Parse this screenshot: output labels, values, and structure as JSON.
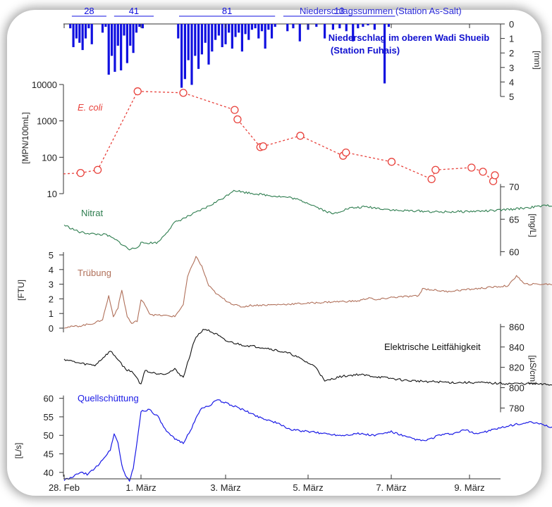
{
  "chart_data": [
    {
      "panel": "precipitation",
      "type": "bar",
      "title": "Niederschlag im oberen Wadi Shueib",
      "subtitle": "(Station Fuhais)",
      "top_legend": "Niederschlagssummen (Station As-Salt)",
      "yunit": "[mm]",
      "yticks": [
        0,
        1,
        2,
        3,
        4,
        5
      ],
      "ylim": [
        0,
        5
      ],
      "inverted": true,
      "color": "#1010e0",
      "sum_labels": [
        {
          "label": "28",
          "from": -0.9,
          "to": -0.45
        },
        {
          "label": "41",
          "from": -0.35,
          "to": 0.15
        },
        {
          "label": "81",
          "from": 0.45,
          "to": 1.6
        },
        {
          "label": "13",
          "from": 1.7,
          "to": 3.05
        }
      ],
      "x": [
        -0.92,
        -0.88,
        -0.84,
        -0.8,
        -0.76,
        -0.72,
        -0.68,
        -0.64,
        -0.5,
        -0.46,
        -0.42,
        -0.38,
        -0.34,
        -0.3,
        -0.26,
        -0.22,
        -0.18,
        -0.14,
        -0.1,
        -0.06,
        -0.02,
        0.02,
        0.44,
        0.48,
        0.52,
        0.56,
        0.6,
        0.64,
        0.68,
        0.72,
        0.76,
        0.8,
        0.84,
        0.88,
        0.92,
        0.96,
        1.0,
        1.04,
        1.08,
        1.12,
        1.16,
        1.2,
        1.24,
        1.28,
        1.32,
        1.36,
        1.4,
        1.44,
        1.48,
        1.52,
        1.56,
        1.6,
        1.75,
        1.82,
        1.9,
        2.0,
        2.1,
        2.2,
        2.3,
        2.38,
        2.46,
        2.54,
        2.6,
        2.66,
        2.72,
        2.8,
        2.92,
        2.97
      ],
      "values": [
        0.3,
        1.6,
        1.0,
        1.3,
        1.8,
        1.0,
        0.3,
        1.4,
        0.6,
        0.2,
        3.5,
        2.2,
        3.3,
        1.5,
        3.2,
        0.8,
        2.7,
        1.5,
        2.0,
        0.6,
        0.2,
        0.3,
        1.0,
        4.4,
        3.8,
        2.5,
        4.2,
        2.2,
        3.1,
        2.1,
        1.3,
        2.8,
        1.9,
        1.1,
        0.8,
        1.6,
        1.4,
        0.6,
        1.7,
        0.9,
        0.6,
        1.9,
        0.7,
        1.1,
        0.4,
        0.3,
        1.0,
        0.5,
        1.7,
        0.4,
        1.0,
        0.2,
        0.5,
        0.3,
        1.2,
        0.4,
        0.2,
        1.0,
        0.4,
        0.3,
        0.5,
        1.2,
        0.3,
        0.2,
        0.1,
        0.4,
        4.1,
        0.2
      ]
    },
    {
      "panel": "ecoli",
      "type": "line",
      "series_name": "E. coli",
      "ylabel": "[MPN/100mL]",
      "yscale": "log",
      "yticks": [
        10,
        100,
        1000,
        10000
      ],
      "ylim": [
        10,
        10000
      ],
      "color": "#e8423c",
      "x": [
        -1.6,
        -1.3,
        -1.0,
        -0.3,
        0.5,
        1.4,
        1.45,
        1.85,
        1.9,
        2.55,
        3.3,
        3.35,
        4.15,
        4.85,
        4.92,
        5.55,
        5.75,
        5.93,
        5.96
      ],
      "values": [
        35,
        37,
        45,
        6500,
        5900,
        2000,
        1100,
        190,
        200,
        390,
        110,
        135,
        75,
        25,
        45,
        52,
        40,
        22,
        32
      ]
    },
    {
      "panel": "nitrat",
      "type": "line",
      "series_name": "Nitrat",
      "ylabel": "[mg/L]",
      "yticks": [
        60,
        65,
        70
      ],
      "ylim": [
        57,
        71
      ],
      "color": "#2e7d4f",
      "x": [
        -1.0,
        -0.8,
        -0.6,
        -0.45,
        -0.3,
        -0.15,
        -0.05,
        0.0,
        0.2,
        0.4,
        0.6,
        0.8,
        1.0,
        1.1,
        1.2,
        1.5,
        1.8,
        2.0,
        2.2,
        2.3,
        2.4,
        2.5,
        2.7,
        2.9,
        3.1,
        3.3,
        3.6,
        4.0,
        4.3,
        4.6,
        5.0,
        5.3,
        5.6,
        5.9,
        6.05
      ],
      "values": [
        64.1,
        63.0,
        62.7,
        62.6,
        61.6,
        60.3,
        60.7,
        61.3,
        61.4,
        64.5,
        65.7,
        67.0,
        68.5,
        69.5,
        69.2,
        68.7,
        68.3,
        67.5,
        66.3,
        65.8,
        66.3,
        66.7,
        66.9,
        66.6,
        66.3,
        66.3,
        66.1,
        66.2,
        66.3,
        66.6,
        67.1,
        67.3,
        67.6,
        67.8,
        67.9
      ]
    },
    {
      "panel": "truebung",
      "type": "line",
      "series_name": "Trübung",
      "ylabel": "[FTU]",
      "yticks": [
        0,
        1,
        2,
        3,
        4,
        5
      ],
      "ylim": [
        0,
        5
      ],
      "color": "#b0705a",
      "x": [
        -1.0,
        -0.8,
        -0.6,
        -0.5,
        -0.42,
        -0.36,
        -0.3,
        -0.25,
        -0.18,
        -0.12,
        -0.05,
        0.0,
        0.05,
        0.1,
        0.15,
        0.3,
        0.4,
        0.5,
        0.55,
        0.65,
        0.72,
        0.8,
        0.9,
        1.0,
        1.1,
        1.2,
        1.3,
        1.6,
        2.0,
        2.3,
        2.6,
        2.75,
        2.8,
        3.0,
        3.35,
        3.4,
        3.7,
        4.1,
        4.5,
        4.6,
        4.7,
        4.85,
        5.0,
        5.2,
        5.5,
        5.9,
        6.05
      ],
      "values": [
        0.05,
        0.15,
        0.35,
        0.6,
        2.2,
        0.8,
        1.4,
        2.6,
        0.8,
        0.3,
        0.5,
        1.9,
        1.6,
        1.0,
        0.9,
        0.85,
        0.8,
        1.6,
        3.5,
        4.9,
        4.2,
        2.9,
        2.3,
        1.9,
        1.6,
        1.45,
        1.55,
        1.6,
        1.7,
        1.8,
        1.85,
        2.1,
        1.9,
        2.1,
        2.2,
        2.7,
        2.5,
        2.7,
        2.9,
        3.6,
        3.0,
        3.0,
        3.0,
        3.0,
        2.95,
        2.8,
        2.85
      ]
    },
    {
      "panel": "leitfaehigkeit",
      "type": "line",
      "series_name": "Elektrische Leitfähigkeit",
      "ylabel": "[µS/cm]",
      "yticks": [
        780,
        800,
        820,
        840,
        860
      ],
      "ylim": [
        772,
        862
      ],
      "color": "#111111",
      "x": [
        -1.0,
        -0.8,
        -0.6,
        -0.4,
        -0.3,
        -0.2,
        -0.1,
        0.0,
        0.05,
        0.1,
        0.2,
        0.3,
        0.4,
        0.5,
        0.6,
        0.65,
        0.75,
        0.9,
        1.0,
        1.2,
        1.5,
        1.8,
        2.1,
        2.2,
        2.3,
        2.4,
        2.6,
        2.9,
        3.2,
        3.5,
        3.8,
        4.1,
        4.4,
        4.7,
        5.0,
        5.4,
        5.8,
        6.05
      ],
      "values": [
        828,
        824,
        822,
        836,
        828,
        818,
        815,
        803,
        818,
        815,
        814,
        814,
        818,
        810,
        838,
        850,
        858,
        852,
        846,
        842,
        839,
        833,
        820,
        806,
        809,
        811,
        813,
        810,
        807,
        806,
        805,
        805,
        804,
        804,
        803,
        803,
        804,
        805
      ]
    },
    {
      "panel": "quellschuettung",
      "type": "line",
      "series_name": "Quellschüttung",
      "ylabel": "[L/s]",
      "yticks": [
        40,
        45,
        50,
        55,
        60
      ],
      "ylim": [
        37.5,
        60.5
      ],
      "xticks": [
        "28. Feb",
        "1. März",
        "3. März",
        "5. März",
        "7. März",
        "9. März"
      ],
      "xtick_values": [
        -1,
        0,
        1,
        2,
        3,
        4
      ],
      "color": "#1a1ae6",
      "x": [
        -1.0,
        -0.9,
        -0.8,
        -0.7,
        -0.6,
        -0.5,
        -0.4,
        -0.35,
        -0.3,
        -0.25,
        -0.2,
        -0.15,
        -0.1,
        -0.05,
        0.0,
        0.1,
        0.2,
        0.3,
        0.4,
        0.5,
        0.6,
        0.7,
        0.8,
        0.9,
        1.0,
        1.2,
        1.4,
        1.6,
        1.8,
        2.0,
        2.2,
        2.4,
        2.6,
        2.8,
        3.0,
        3.2,
        3.4,
        3.5,
        3.6,
        3.8,
        3.95,
        4.0,
        4.1,
        4.2,
        4.3,
        4.6,
        4.8,
        5.0,
        5.2,
        5.3,
        5.4,
        5.6,
        5.8,
        5.9,
        6.05
      ],
      "values": [
        38.0,
        38.5,
        40.0,
        39.5,
        41.0,
        43.5,
        46.0,
        50.5,
        48.0,
        42.0,
        39.0,
        37.8,
        41.0,
        48.5,
        56.5,
        57.0,
        55.0,
        51.0,
        49.0,
        48.0,
        52.0,
        57.0,
        58.0,
        59.5,
        58.8,
        57.0,
        55.0,
        53.5,
        51.5,
        51.0,
        50.5,
        50.0,
        50.5,
        50.0,
        51.0,
        49.5,
        48.5,
        49.0,
        50.0,
        50.5,
        51.5,
        51.0,
        50.5,
        51.0,
        51.5,
        53.0,
        53.5,
        52.5,
        51.0,
        53.0,
        55.0,
        54.5,
        52.5,
        58.5,
        57.0
      ]
    }
  ]
}
